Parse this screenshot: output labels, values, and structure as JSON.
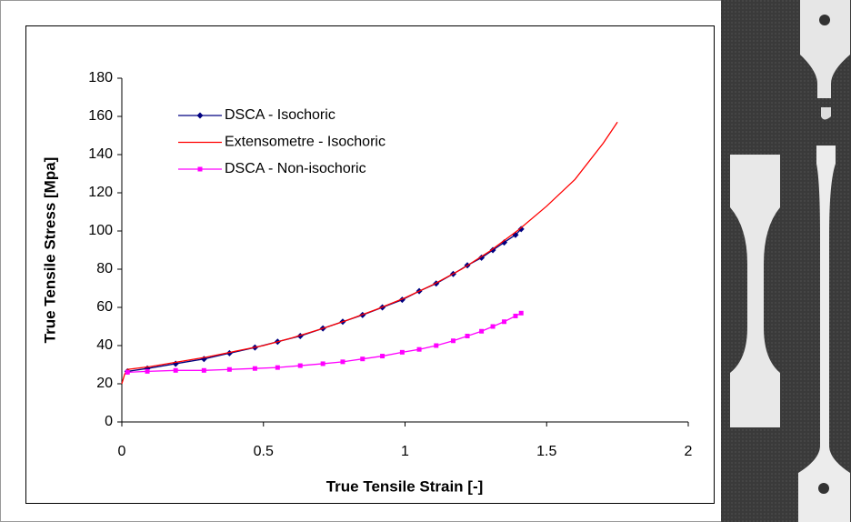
{
  "chart_data": {
    "type": "line",
    "x_label": "True Tensile Strain [-]",
    "y_label": "True Tensile Stress [Mpa]",
    "xlim": [
      0,
      2
    ],
    "xticks": [
      0,
      0.5,
      1,
      1.5,
      2
    ],
    "ylim": [
      0,
      180
    ],
    "yticks": [
      0,
      20,
      40,
      60,
      80,
      100,
      120,
      140,
      160,
      180
    ],
    "grid": false,
    "legend": "upper-left",
    "series": [
      {
        "name": "DSCA - Isochoric",
        "color": "#000080",
        "marker": "diamond",
        "x": [
          0.02,
          0.09,
          0.19,
          0.29,
          0.38,
          0.47,
          0.55,
          0.63,
          0.71,
          0.78,
          0.85,
          0.92,
          0.99,
          1.05,
          1.11,
          1.17,
          1.22,
          1.27,
          1.31,
          1.35,
          1.39,
          1.41
        ],
        "values": [
          26.5,
          28,
          30.5,
          33,
          36,
          39,
          42,
          45,
          49,
          52.5,
          56,
          60,
          64,
          68.5,
          72.5,
          77.5,
          82,
          86,
          90,
          94,
          98,
          101
        ]
      },
      {
        "name": "Extensometre - Isochoric",
        "color": "#ff0000",
        "marker": "none",
        "x": [
          0,
          0.01,
          0.02,
          0.1,
          0.2,
          0.3,
          0.4,
          0.5,
          0.6,
          0.7,
          0.8,
          0.9,
          1.0,
          1.1,
          1.2,
          1.3,
          1.4,
          1.5,
          1.6,
          1.7,
          1.75
        ],
        "values": [
          20,
          25,
          27.5,
          29,
          31.5,
          34,
          37,
          40,
          44,
          48.5,
          53.5,
          59,
          65,
          72,
          80,
          89.5,
          100.5,
          113,
          127,
          146,
          157
        ]
      },
      {
        "name": "DSCA - Non-isochoric",
        "color": "#ff00ff",
        "marker": "square",
        "x": [
          0.02,
          0.09,
          0.19,
          0.29,
          0.38,
          0.47,
          0.55,
          0.63,
          0.71,
          0.78,
          0.85,
          0.92,
          0.99,
          1.05,
          1.11,
          1.17,
          1.22,
          1.27,
          1.31,
          1.35,
          1.39,
          1.41
        ],
        "values": [
          26,
          26.5,
          27,
          27,
          27.5,
          28,
          28.5,
          29.5,
          30.5,
          31.5,
          33,
          34.5,
          36.5,
          38,
          40,
          42.5,
          45,
          47.5,
          50,
          52.5,
          55.5,
          57
        ]
      }
    ]
  }
}
